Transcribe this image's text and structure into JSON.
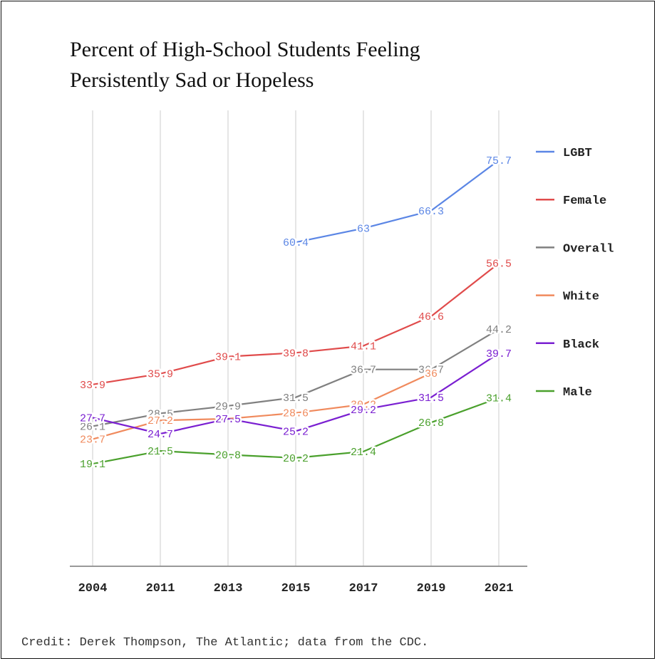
{
  "title_lines": [
    "Percent of High-School Students Feeling",
    "Persistently Sad or Hopeless"
  ],
  "credit": "Credit: Derek Thompson, The Atlantic; data from the CDC.",
  "chart_data": {
    "type": "line",
    "title": "Percent of High-School Students Feeling Persistently Sad or Hopeless",
    "xlabel": "",
    "ylabel": "",
    "categories": [
      "2004",
      "2011",
      "2013",
      "2015",
      "2017",
      "2019",
      "2021"
    ],
    "ylim": [
      0,
      85
    ],
    "grid": "vertical",
    "legend_position": "right",
    "series": [
      {
        "name": "LGBT",
        "color": "#5b86e5",
        "values": [
          null,
          null,
          null,
          60.4,
          63,
          66.3,
          75.7
        ]
      },
      {
        "name": "Female",
        "color": "#e04b4b",
        "values": [
          33.9,
          35.9,
          39.1,
          39.8,
          41.1,
          46.6,
          56.5
        ]
      },
      {
        "name": "Overall",
        "color": "#808080",
        "values": [
          26.1,
          28.5,
          29.9,
          31.5,
          36.7,
          36.7,
          44.2
        ]
      },
      {
        "name": "White",
        "color": "#f08a5d",
        "values": [
          23.7,
          27.2,
          27.5,
          28.6,
          30.2,
          36,
          null
        ]
      },
      {
        "name": "Black",
        "color": "#7a1fd1",
        "values": [
          27.7,
          24.7,
          27.5,
          25.2,
          29.2,
          31.5,
          39.7
        ]
      },
      {
        "name": "Male",
        "color": "#4aa02c",
        "values": [
          19.1,
          21.5,
          20.8,
          20.2,
          21.4,
          26.8,
          31.4
        ]
      }
    ],
    "point_labels": [
      {
        "series": "LGBT",
        "labels": [
          null,
          null,
          null,
          "60.4",
          "63",
          "66.3",
          "75.7"
        ]
      },
      {
        "series": "Female",
        "labels": [
          "33.9",
          "35.9",
          "39.1",
          "39.8",
          "41.1",
          "46.6",
          "56.5"
        ]
      },
      {
        "series": "Overall",
        "labels": [
          "26.1",
          "28.5",
          "29.9",
          "31.5",
          "36.7",
          "36.7",
          "44.2"
        ]
      },
      {
        "series": "White",
        "labels": [
          "23.7",
          "27.2",
          null,
          "28.6",
          "30.2",
          "36",
          null
        ]
      },
      {
        "series": "Black",
        "labels": [
          "27.7",
          "24.7",
          "27.5",
          "25.2",
          "29.2",
          "31.5",
          "39.7"
        ]
      },
      {
        "series": "Male",
        "labels": [
          "19.1",
          "21.5",
          "20.8",
          "20.2",
          "21.4",
          "26.8",
          "31.4"
        ]
      }
    ]
  }
}
